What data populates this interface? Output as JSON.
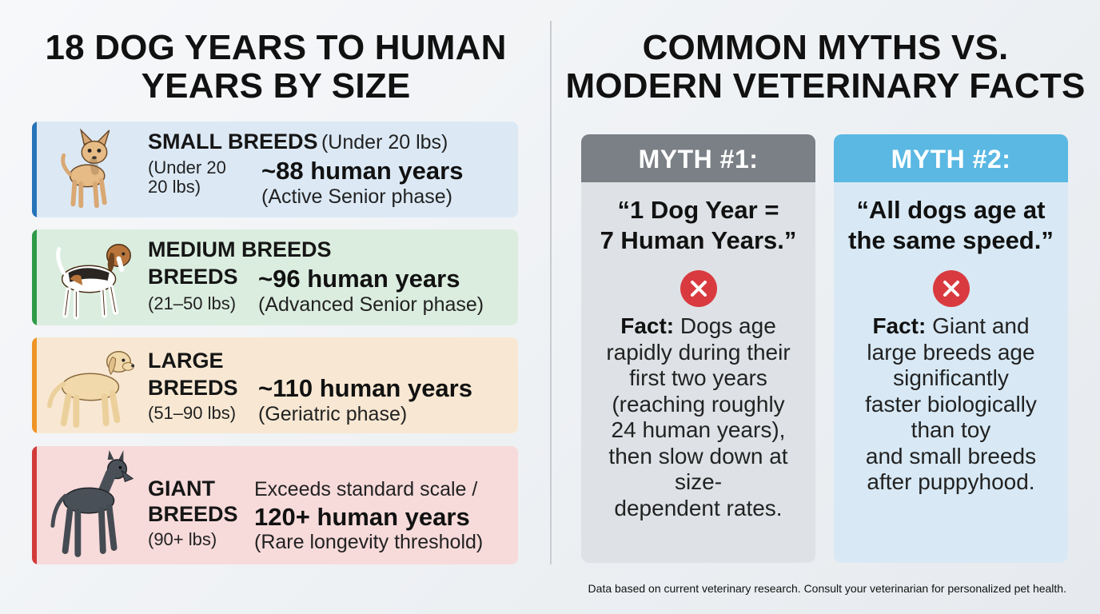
{
  "left_title": [
    "18 DOG YEARS TO HUMAN",
    "YEARS BY SIZE"
  ],
  "right_title": [
    "COMMON MYTHS VS.",
    "MODERN VETERINARY FACTS"
  ],
  "breeds": {
    "small": {
      "name": "SMALL BREEDS",
      "paren": "(Under 20 lbs)",
      "weight_lines": [
        "(Under 20",
        "20 lbs)"
      ],
      "years": "~88 human years",
      "phase": "(Active Senior phase)"
    },
    "medium": {
      "name_lines": [
        "MEDIUM BREEDS",
        "BREEDS"
      ],
      "weight": "(21–50 lbs)",
      "years": "~96 human years",
      "phase": "(Advanced Senior phase)"
    },
    "large": {
      "name_lines": [
        "LARGE",
        "BREEDS"
      ],
      "weight": "(51–90 lbs)",
      "years": "~110 human years",
      "phase": "(Geriatric phase)"
    },
    "giant": {
      "name_lines": [
        "GIANT",
        "BREEDS"
      ],
      "weight": "(90+ lbs)",
      "note": "Exceeds standard scale /",
      "years": "120+ human years",
      "phase": "(Rare longevity threshold)"
    }
  },
  "myths": [
    {
      "header": "MYTH #1:",
      "quote_lines": [
        "“1 Dog Year =",
        "7 Human Years.”"
      ],
      "fact_label": "Fact:",
      "fact_lines": [
        " Dogs age",
        "rapidly during their",
        "first two years",
        "(reaching roughly",
        "24 human years),",
        "then slow down at",
        "size-",
        "dependent rates."
      ]
    },
    {
      "header": "MYTH #2:",
      "quote_lines": [
        "“All dogs age at",
        "the same speed.”"
      ],
      "fact_label": "Fact:",
      "fact_lines": [
        " Giant and",
        "large breeds age",
        "significantly",
        "faster biologically",
        "than toy",
        "and small breeds",
        "after puppyhood."
      ]
    }
  ],
  "footer": "Data based on current veterinary research. Consult your veterinarian for personalized pet health.",
  "colors": {
    "small_accent": "#2773b8",
    "medium_accent": "#2e9a47",
    "large_accent": "#ee9426",
    "giant_accent": "#d33a3a",
    "myth1_header": "#7b8086",
    "myth2_header": "#5ab8e3",
    "x_icon": "#d93a3f"
  },
  "icons": {
    "small": "chihuahua-icon",
    "medium": "beagle-icon",
    "large": "labrador-icon",
    "giant": "great-dane-icon",
    "myth": "x-circle-icon"
  }
}
